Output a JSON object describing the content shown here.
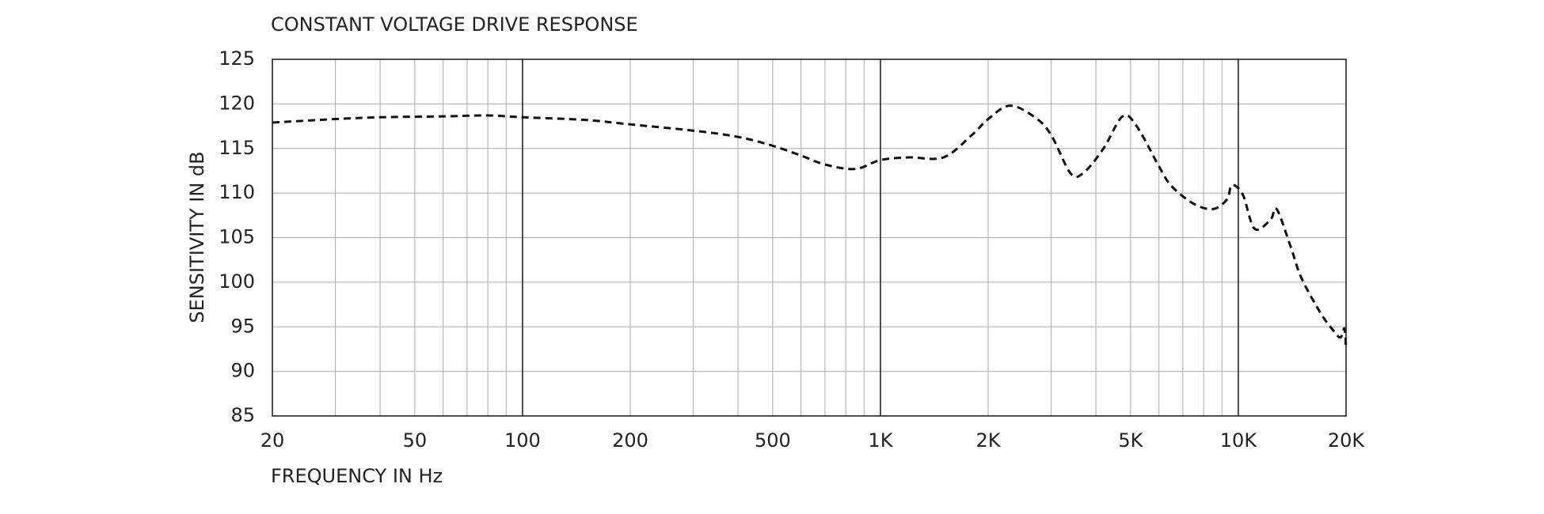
{
  "chart_data": {
    "type": "line",
    "title": "CONSTANT VOLTAGE DRIVE RESPONSE",
    "x_label": "FREQUENCY IN Hz",
    "y_label": "SENSITIVITY IN dB",
    "x": [
      20,
      30,
      40,
      60,
      80,
      100,
      150,
      200,
      300,
      400,
      500,
      600,
      700,
      850,
      1000,
      1200,
      1500,
      1800,
      2000,
      2300,
      2700,
      3000,
      3400,
      3700,
      4200,
      4750,
      5200,
      6000,
      6500,
      7500,
      8500,
      9300,
      9600,
      10300,
      11100,
      12300,
      12800,
      14000,
      15000,
      17000,
      18500,
      19300,
      19800,
      20000
    ],
    "values": [
      117.9,
      118.3,
      118.5,
      118.6,
      118.7,
      118.5,
      118.2,
      117.7,
      117,
      116.3,
      115.3,
      114.2,
      113.2,
      112.7,
      113.7,
      114,
      114,
      116.5,
      118.3,
      119.8,
      118.5,
      116.5,
      112.2,
      112.3,
      115,
      118.6,
      117.5,
      113,
      110.8,
      108.8,
      108.2,
      109.3,
      110.9,
      109.8,
      106,
      107,
      108.2,
      104,
      100.5,
      96.5,
      94.5,
      93.8,
      94.8,
      92.5
    ],
    "color": "#111111",
    "dashed": true,
    "log_x": true,
    "grid": true,
    "xlim": [
      20,
      20000
    ],
    "ylim": [
      85,
      125
    ],
    "xticks": [
      20,
      50,
      100,
      200,
      500,
      {
        "value": 1000,
        "label": "1K"
      },
      {
        "value": 2000,
        "label": "2K"
      },
      {
        "value": 5000,
        "label": "5K"
      },
      {
        "value": 10000,
        "label": "10K"
      },
      {
        "value": 20000,
        "label": "20K"
      }
    ],
    "minor_xticks": [
      30,
      40,
      60,
      70,
      80,
      90,
      300,
      400,
      600,
      700,
      800,
      900,
      3000,
      4000,
      6000,
      7000,
      8000,
      9000
    ],
    "yticks": [
      85,
      90,
      95,
      100,
      105,
      110,
      115,
      120,
      125
    ]
  }
}
